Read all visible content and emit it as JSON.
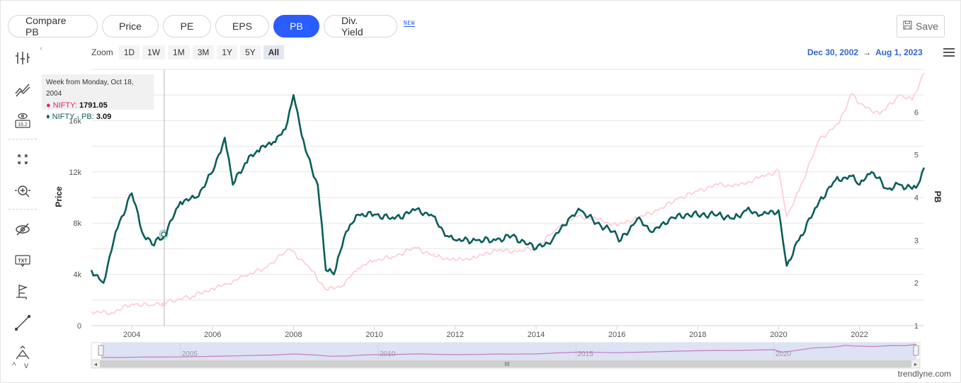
{
  "tabs": [
    {
      "label": "Compare PB",
      "active": false
    },
    {
      "label": "Price",
      "active": false
    },
    {
      "label": "PE",
      "active": false
    },
    {
      "label": "EPS",
      "active": false
    },
    {
      "label": "PB",
      "active": true
    },
    {
      "label": "Div. Yield",
      "active": false
    }
  ],
  "new_badge": "NEW",
  "save_label": "Save",
  "zoom": {
    "label": "Zoom",
    "options": [
      "1D",
      "1W",
      "1M",
      "3M",
      "1Y",
      "5Y",
      "All"
    ],
    "active": "All"
  },
  "date_range": {
    "from": "Dec 30, 2002",
    "to": "Aug 1, 2023"
  },
  "tooltip": {
    "date": "Week from Monday, Oct 18, 2004",
    "series1_name": "NIFTY",
    "series1_value": "1791.05",
    "series2_name": "NIFTY - PB",
    "series2_value": "3.09"
  },
  "credit": "trendlyne.com",
  "icons": [
    "indicators-icon",
    "compare-lines-icon",
    "eye-value-icon",
    "fullscreen-icon",
    "zoom-cursor-icon",
    "hide-icon",
    "text-annotation-icon",
    "flag-icon",
    "line-tool-icon",
    "fibonacci-icon"
  ],
  "colors": {
    "accent": "#2a5cff",
    "pb_line": "#0b5e5a",
    "price_line": "#ffc9d6",
    "date_range": "#3366cc"
  },
  "chart_data": {
    "type": "line",
    "ylabel_left": "Price",
    "ylabel_right": "PB",
    "x_ticks": [
      "2004",
      "2006",
      "2008",
      "2010",
      "2012",
      "2014",
      "2016",
      "2018",
      "2020",
      "2022"
    ],
    "y_left_ticks": [
      "0",
      "4k",
      "8k",
      "12k",
      "16k"
    ],
    "y_right_ticks": [
      "1",
      "2",
      "3",
      "4",
      "5",
      "6"
    ],
    "y_left_range": [
      0,
      20000
    ],
    "y_right_range": [
      1,
      7
    ],
    "navigator_labels": [
      "2005",
      "2010",
      "2015",
      "2020"
    ],
    "series": [
      {
        "name": "NIFTY",
        "x": [
          2003.0,
          2003.5,
          2004.0,
          2004.5,
          2004.8,
          2005.5,
          2006.0,
          2006.4,
          2006.8,
          2007.3,
          2007.9,
          2008.4,
          2008.8,
          2009.2,
          2009.6,
          2010.0,
          2010.5,
          2011.0,
          2011.5,
          2012.0,
          2012.5,
          2013.0,
          2013.5,
          2014.0,
          2014.5,
          2015.0,
          2015.5,
          2016.0,
          2016.5,
          2017.0,
          2017.5,
          2018.0,
          2018.5,
          2019.0,
          2019.5,
          2020.0,
          2020.2,
          2020.5,
          2021.0,
          2021.5,
          2021.8,
          2022.0,
          2022.5,
          2023.0,
          2023.3,
          2023.6
        ],
        "y": [
          1100,
          1000,
          1700,
          1600,
          1791,
          2300,
          2900,
          3300,
          3900,
          4500,
          6000,
          4500,
          2800,
          3100,
          4500,
          5100,
          5400,
          6100,
          5400,
          5100,
          5300,
          5900,
          5800,
          6100,
          7500,
          8500,
          8300,
          7800,
          8400,
          9000,
          9900,
          10500,
          11000,
          10900,
          11500,
          12100,
          8500,
          10500,
          14500,
          15800,
          18100,
          17300,
          16500,
          18000,
          17600,
          19700
        ]
      },
      {
        "name": "NIFTY - PB",
        "x": [
          2003.0,
          2003.3,
          2003.6,
          2004.0,
          2004.3,
          2004.5,
          2004.8,
          2005.2,
          2005.6,
          2006.0,
          2006.3,
          2006.5,
          2006.8,
          2007.1,
          2007.5,
          2007.8,
          2008.0,
          2008.3,
          2008.6,
          2008.8,
          2009.0,
          2009.3,
          2009.6,
          2010.0,
          2010.5,
          2011.0,
          2011.4,
          2011.8,
          2012.0,
          2012.5,
          2013.0,
          2013.4,
          2013.8,
          2014.0,
          2014.4,
          2014.8,
          2015.1,
          2015.5,
          2015.9,
          2016.1,
          2016.5,
          2016.9,
          2017.3,
          2017.7,
          2018.1,
          2018.5,
          2018.9,
          2019.2,
          2019.6,
          2020.0,
          2020.2,
          2020.5,
          2021.0,
          2021.4,
          2021.8,
          2022.0,
          2022.3,
          2022.7,
          2023.0,
          2023.3,
          2023.5,
          2023.6
        ],
        "y": [
          2.3,
          2.0,
          3.2,
          4.1,
          3.1,
          2.9,
          3.09,
          3.9,
          4.0,
          4.6,
          5.4,
          4.3,
          4.8,
          5.1,
          5.3,
          5.6,
          6.4,
          5.1,
          4.3,
          2.3,
          2.2,
          3.2,
          3.6,
          3.6,
          3.5,
          3.7,
          3.6,
          3.1,
          3.0,
          3.0,
          3.0,
          3.1,
          2.9,
          2.8,
          3.0,
          3.5,
          3.7,
          3.4,
          3.2,
          3.0,
          3.5,
          3.2,
          3.5,
          3.6,
          3.6,
          3.6,
          3.5,
          3.7,
          3.6,
          3.7,
          2.4,
          3.0,
          3.9,
          4.4,
          4.5,
          4.3,
          4.6,
          4.2,
          4.3,
          4.2,
          4.4,
          4.7
        ]
      }
    ]
  }
}
